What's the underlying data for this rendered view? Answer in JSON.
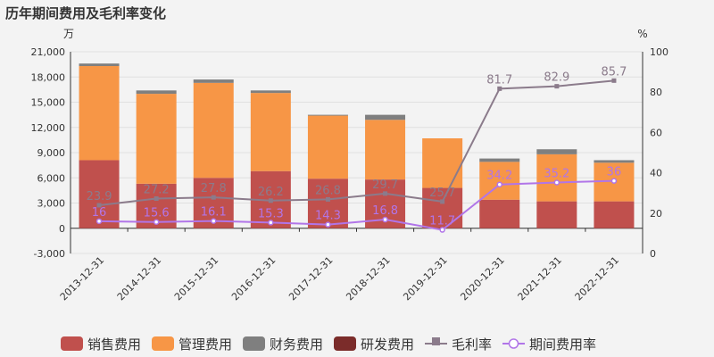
{
  "chart_data": {
    "type": "bar",
    "title": "历年期间费用及毛利率变化",
    "left_unit": "万",
    "right_unit": "%",
    "categories": [
      "2013-12-31",
      "2014-12-31",
      "2015-12-31",
      "2016-12-31",
      "2017-12-31",
      "2018-12-31",
      "2019-12-31",
      "2020-12-31",
      "2021-12-31",
      "2022-12-31"
    ],
    "y_left": {
      "min": -3000,
      "max": 21000,
      "ticks": [
        "-3,000",
        "0",
        "3,000",
        "6,000",
        "9,000",
        "12,000",
        "15,000",
        "18,000",
        "21,000"
      ],
      "tick_values": [
        -3000,
        0,
        3000,
        6000,
        9000,
        12000,
        15000,
        18000,
        21000
      ]
    },
    "y_right": {
      "min": 0,
      "max": 100,
      "ticks": [
        "0",
        "20",
        "40",
        "60",
        "80",
        "100"
      ],
      "tick_values": [
        0,
        20,
        40,
        60,
        80,
        100
      ]
    },
    "grid": true,
    "legend_position": "bottom",
    "bar_series": [
      {
        "name": "销售费用",
        "color": "#c0504d",
        "values": [
          8100,
          5300,
          6000,
          6800,
          5900,
          5800,
          4800,
          3400,
          3200,
          3200
        ]
      },
      {
        "name": "管理费用",
        "color": "#f79646",
        "values": [
          11200,
          10700,
          11300,
          9300,
          7500,
          7100,
          5900,
          4500,
          5600,
          4600
        ]
      },
      {
        "name": "财务费用",
        "color": "#7f7f7f",
        "values": [
          300,
          400,
          400,
          300,
          100,
          600,
          0,
          400,
          600,
          300
        ]
      },
      {
        "name": "研发费用",
        "color": "#7b2c2a",
        "values": [
          0,
          0,
          0,
          0,
          0,
          0,
          0,
          0,
          0,
          0
        ]
      }
    ],
    "line_series": [
      {
        "name": "毛利率",
        "color": "#8b7b8b",
        "label_color": "#8b7b8b",
        "marker": "square",
        "labels": [
          "23.9",
          "27.2",
          "27.8",
          "26.2",
          "26.8",
          "29.7",
          "25.7",
          "81.7",
          "82.9",
          "85.7"
        ],
        "values": [
          23.9,
          27.2,
          27.8,
          26.2,
          26.8,
          29.7,
          25.7,
          81.7,
          82.9,
          85.7
        ]
      },
      {
        "name": "期间费用率",
        "color": "#b175e8",
        "label_color": "#b175e8",
        "marker": "circle",
        "labels": [
          "16",
          "15.6",
          "16.1",
          "15.3",
          "14.3",
          "16.8",
          "11.7",
          "34.2",
          "35.2",
          "36"
        ],
        "values": [
          16,
          15.6,
          16.1,
          15.3,
          14.3,
          16.8,
          11.7,
          34.2,
          35.2,
          36
        ]
      }
    ]
  }
}
